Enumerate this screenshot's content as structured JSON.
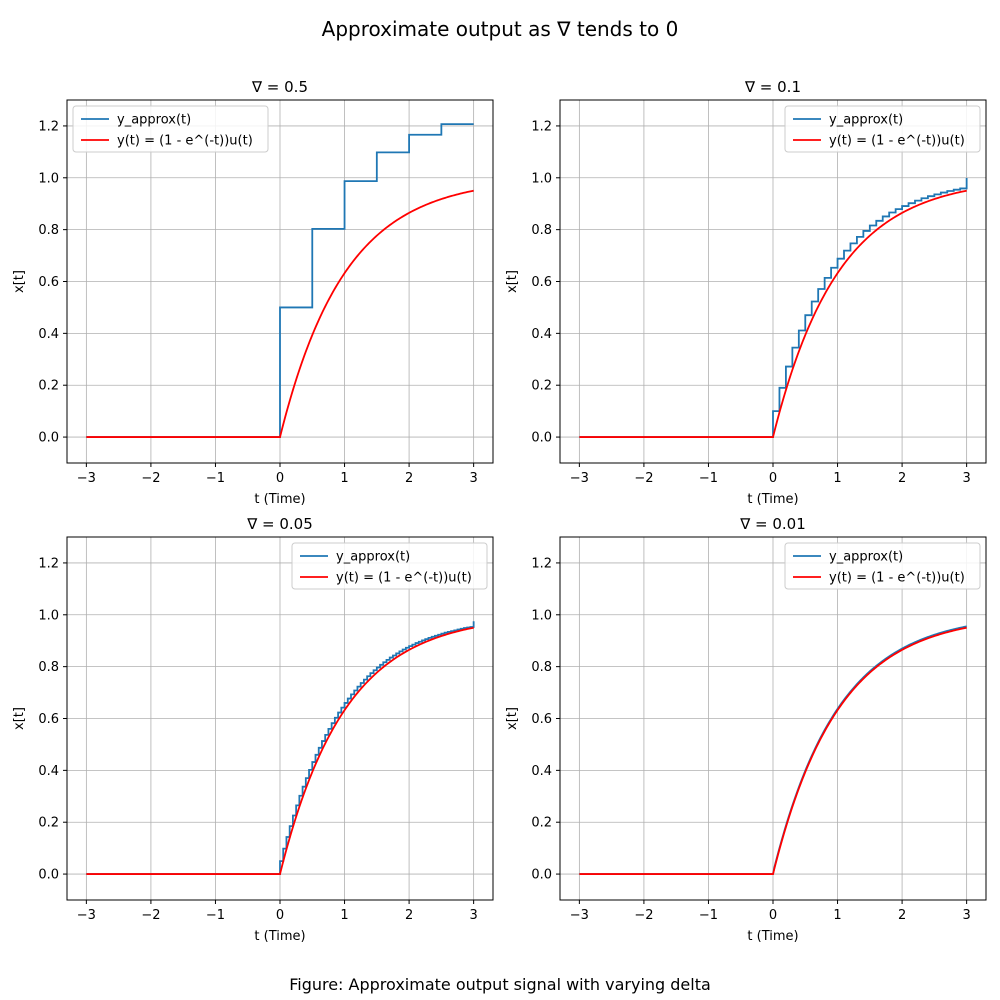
{
  "figure": {
    "title": "Approximate output as ∇ tends to 0",
    "caption": "Figure: Approximate output signal with varying delta"
  },
  "colors": {
    "approx": "#1f77b4",
    "exact": "#ff0000",
    "grid": "#b0b0b0"
  },
  "chart_data": [
    {
      "type": "line",
      "title": "∇ = 0.5",
      "delta": 0.5,
      "xlabel": "t (Time)",
      "ylabel": "x[t]",
      "xlim": [
        -3.3,
        3.3
      ],
      "ylim": [
        -0.1,
        1.3
      ],
      "xticks": [
        -3,
        -2,
        -1,
        0,
        1,
        2,
        3
      ],
      "yticks": [
        0.0,
        0.2,
        0.4,
        0.6,
        0.8,
        1.0,
        1.2
      ],
      "xtick_labels": [
        "−3",
        "−2",
        "−1",
        "0",
        "1",
        "2",
        "3"
      ],
      "ytick_labels": [
        "0.0",
        "0.2",
        "0.4",
        "0.6",
        "0.8",
        "1.0",
        "1.2"
      ],
      "grid": true,
      "legend_position": "upper left",
      "series": [
        {
          "name": "y_approx(t)",
          "kind": "step",
          "x": [
            -3,
            0,
            0.5,
            1.0,
            1.5,
            2.0,
            2.5,
            3.0
          ],
          "y": [
            0,
            0.5,
            0.803,
            0.987,
            1.098,
            1.166,
            1.207,
            1.207
          ]
        },
        {
          "name": "y(t) = (1 - e^(-t))u(t)",
          "kind": "line",
          "x": [
            -3,
            0,
            0.25,
            0.5,
            0.75,
            1.0,
            1.5,
            2.0,
            2.5,
            3.0
          ],
          "y": [
            0,
            0,
            0.221,
            0.393,
            0.528,
            0.632,
            0.777,
            0.865,
            0.918,
            0.95
          ]
        }
      ]
    },
    {
      "type": "line",
      "title": "∇ = 0.1",
      "delta": 0.1,
      "xlabel": "t (Time)",
      "ylabel": "x[t]",
      "xlim": [
        -3.3,
        3.3
      ],
      "ylim": [
        -0.1,
        1.3
      ],
      "xticks": [
        -3,
        -2,
        -1,
        0,
        1,
        2,
        3
      ],
      "yticks": [
        0.0,
        0.2,
        0.4,
        0.6,
        0.8,
        1.0,
        1.2
      ],
      "xtick_labels": [
        "−3",
        "−2",
        "−1",
        "0",
        "1",
        "2",
        "3"
      ],
      "ytick_labels": [
        "0.0",
        "0.2",
        "0.4",
        "0.6",
        "0.8",
        "1.0",
        "1.2"
      ],
      "grid": true,
      "legend_position": "upper right",
      "series": [
        {
          "name": "y_approx(t)",
          "kind": "step",
          "x": [
            -3,
            0,
            0.1,
            0.2,
            0.3,
            0.4,
            0.5,
            0.6,
            0.7,
            0.8,
            0.9,
            1.0,
            1.1,
            1.2,
            1.3,
            1.4,
            1.5,
            1.6,
            1.7,
            1.8,
            1.9,
            2.0,
            2.1,
            2.2,
            2.3,
            2.4,
            2.5,
            2.6,
            2.7,
            2.8,
            2.9,
            3.0
          ],
          "y": [
            0,
            0.1,
            0.19,
            0.272,
            0.345,
            0.411,
            0.47,
            0.523,
            0.571,
            0.614,
            0.653,
            0.688,
            0.719,
            0.747,
            0.772,
            0.795,
            0.816,
            0.834,
            0.851,
            0.866,
            0.879,
            0.891,
            0.902,
            0.912,
            0.921,
            0.929,
            0.936,
            0.943,
            0.949,
            0.954,
            0.959,
            0.999
          ]
        },
        {
          "name": "y(t) = (1 - e^(-t))u(t)",
          "kind": "line",
          "x": [
            -3,
            0,
            0.25,
            0.5,
            0.75,
            1.0,
            1.5,
            2.0,
            2.5,
            3.0
          ],
          "y": [
            0,
            0,
            0.221,
            0.393,
            0.528,
            0.632,
            0.777,
            0.865,
            0.918,
            0.95
          ]
        }
      ]
    },
    {
      "type": "line",
      "title": "∇ = 0.05",
      "delta": 0.05,
      "xlabel": "t (Time)",
      "ylabel": "x[t]",
      "xlim": [
        -3.3,
        3.3
      ],
      "ylim": [
        -0.1,
        1.3
      ],
      "xticks": [
        -3,
        -2,
        -1,
        0,
        1,
        2,
        3
      ],
      "yticks": [
        0.0,
        0.2,
        0.4,
        0.6,
        0.8,
        1.0,
        1.2
      ],
      "xtick_labels": [
        "−3",
        "−2",
        "−1",
        "0",
        "1",
        "2",
        "3"
      ],
      "ytick_labels": [
        "0.0",
        "0.2",
        "0.4",
        "0.6",
        "0.8",
        "1.0",
        "1.2"
      ],
      "grid": true,
      "legend_position": "upper right",
      "series": [
        {
          "name": "y_approx(t)",
          "kind": "step",
          "x": [
            -3,
            0,
            0.05,
            0.1,
            0.15,
            0.2,
            0.25,
            0.3,
            0.35,
            0.4,
            0.45,
            0.5,
            0.55,
            0.6,
            0.65,
            0.7,
            0.75,
            0.8,
            0.85,
            0.9,
            0.95,
            1.0,
            1.05,
            1.1,
            1.15,
            1.2,
            1.25,
            1.3,
            1.35,
            1.4,
            1.45,
            1.5,
            1.55,
            1.6,
            1.65,
            1.7,
            1.75,
            1.8,
            1.85,
            1.9,
            1.95,
            2.0,
            2.05,
            2.1,
            2.15,
            2.2,
            2.25,
            2.3,
            2.35,
            2.4,
            2.45,
            2.5,
            2.55,
            2.6,
            2.65,
            2.7,
            2.75,
            2.8,
            2.85,
            2.9,
            2.95,
            3.0
          ],
          "y": [
            0,
            0.05,
            0.098,
            0.143,
            0.185,
            0.226,
            0.265,
            0.302,
            0.337,
            0.37,
            0.402,
            0.432,
            0.46,
            0.487,
            0.513,
            0.537,
            0.56,
            0.582,
            0.603,
            0.623,
            0.642,
            0.66,
            0.677,
            0.693,
            0.708,
            0.723,
            0.737,
            0.75,
            0.763,
            0.775,
            0.786,
            0.797,
            0.807,
            0.817,
            0.826,
            0.835,
            0.843,
            0.851,
            0.859,
            0.866,
            0.873,
            0.879,
            0.885,
            0.891,
            0.896,
            0.901,
            0.906,
            0.911,
            0.915,
            0.919,
            0.923,
            0.927,
            0.931,
            0.934,
            0.937,
            0.94,
            0.943,
            0.946,
            0.949,
            0.951,
            0.953,
            0.975
          ]
        },
        {
          "name": "y(t) = (1 - e^(-t))u(t)",
          "kind": "line",
          "x": [
            -3,
            0,
            0.25,
            0.5,
            0.75,
            1.0,
            1.5,
            2.0,
            2.5,
            3.0
          ],
          "y": [
            0,
            0,
            0.221,
            0.393,
            0.528,
            0.632,
            0.777,
            0.865,
            0.918,
            0.95
          ]
        }
      ]
    },
    {
      "type": "line",
      "title": "∇ = 0.01",
      "delta": 0.01,
      "xlabel": "t (Time)",
      "ylabel": "x[t]",
      "xlim": [
        -3.3,
        3.3
      ],
      "ylim": [
        -0.1,
        1.3
      ],
      "xticks": [
        -3,
        -2,
        -1,
        0,
        1,
        2,
        3
      ],
      "yticks": [
        0.0,
        0.2,
        0.4,
        0.6,
        0.8,
        1.0,
        1.2
      ],
      "xtick_labels": [
        "−3",
        "−2",
        "−1",
        "0",
        "1",
        "2",
        "3"
      ],
      "ytick_labels": [
        "0.0",
        "0.2",
        "0.4",
        "0.6",
        "0.8",
        "1.0",
        "1.2"
      ],
      "grid": true,
      "legend_position": "upper right",
      "series": [
        {
          "name": "y_approx(t)",
          "kind": "line",
          "x": [
            -3,
            0,
            0.25,
            0.5,
            0.75,
            1.0,
            1.5,
            2.0,
            2.5,
            3.0
          ],
          "y": [
            0,
            0.01,
            0.223,
            0.395,
            0.53,
            0.634,
            0.779,
            0.866,
            0.919,
            0.955
          ]
        },
        {
          "name": "y(t) = (1 - e^(-t))u(t)",
          "kind": "line",
          "x": [
            -3,
            0,
            0.25,
            0.5,
            0.75,
            1.0,
            1.5,
            2.0,
            2.5,
            3.0
          ],
          "y": [
            0,
            0,
            0.221,
            0.393,
            0.528,
            0.632,
            0.777,
            0.865,
            0.918,
            0.95
          ]
        }
      ]
    }
  ]
}
